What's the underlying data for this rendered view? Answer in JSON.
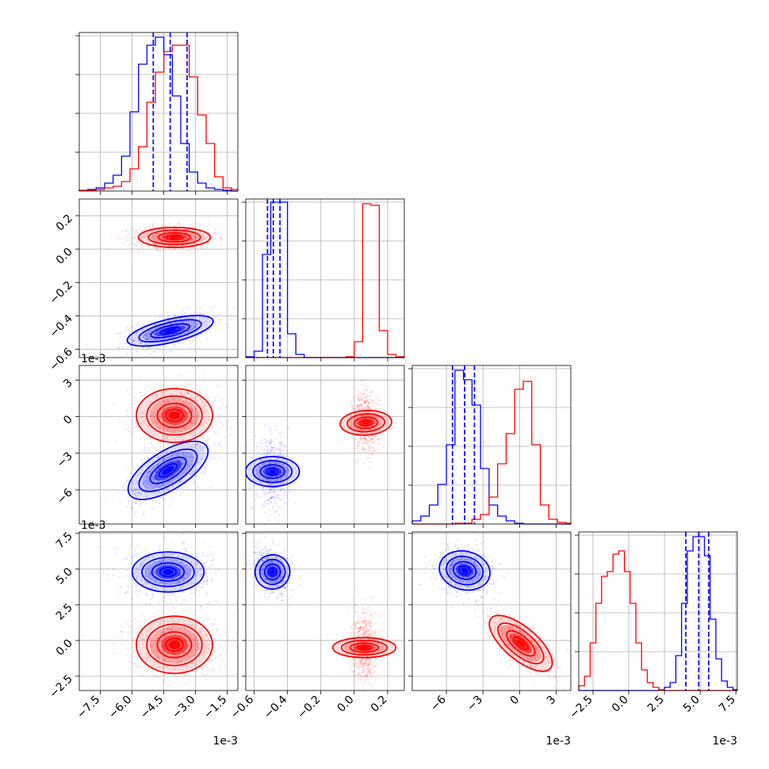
{
  "chart_data": {
    "type": "corner",
    "series": [
      {
        "name": "",
        "color": "#0000ff"
      },
      {
        "name": "",
        "color": "#ff0000"
      }
    ],
    "offset_label": "1e-3",
    "grid": true,
    "params": [
      {
        "range": [
          -8.5,
          -1.0
        ],
        "ticks": [
          -7.5,
          -6.0,
          -4.5,
          -3.0,
          -1.5
        ],
        "tick_labels": [
          "−7.5",
          "−6.0",
          "−4.5",
          "−3.0",
          "−1.5"
        ],
        "offset_label": "1e-3"
      },
      {
        "range": [
          -0.65,
          0.3
        ],
        "ticks": [
          -0.6,
          -0.4,
          -0.2,
          0.0,
          0.2
        ],
        "tick_labels": [
          "−0.6",
          "−0.4",
          "−0.2",
          "0.0",
          "0.2"
        ],
        "offset_label": ""
      },
      {
        "range": [
          -8.8,
          4.2
        ],
        "ticks": [
          -6,
          -3,
          0,
          3
        ],
        "tick_labels": [
          "−6",
          "−3",
          "0",
          "3"
        ],
        "offset_label": "1e-3"
      },
      {
        "range": [
          -3.5,
          7.6
        ],
        "ticks": [
          -2.5,
          0.0,
          2.5,
          5.0,
          7.5
        ],
        "tick_labels": [
          "−2.5",
          "0.0",
          "2.5",
          "5.0",
          "7.5"
        ],
        "offset_label": "1e-3"
      }
    ],
    "quantiles_blue": [
      [
        -5.0,
        -4.2,
        -3.4
      ],
      [
        -0.52,
        -0.485,
        -0.445
      ],
      [
        -5.5,
        -4.5,
        -3.7
      ],
      [
        4.0,
        4.9,
        5.6
      ]
    ],
    "histograms": [
      {
        "bins": [
          -8.5,
          -8.1,
          -7.7,
          -7.3,
          -6.9,
          -6.5,
          -6.1,
          -5.7,
          -5.3,
          -4.9,
          -4.5,
          -4.1,
          -3.7,
          -3.3,
          -2.9,
          -2.5,
          -2.1,
          -1.7,
          -1.3,
          -1.0
        ],
        "blue": [
          0.005,
          0.01,
          0.02,
          0.05,
          0.1,
          0.22,
          0.5,
          0.8,
          0.92,
          0.97,
          0.86,
          0.6,
          0.3,
          0.12,
          0.05,
          0.02,
          0.01,
          0.005,
          0
        ],
        "red": [
          0.005,
          0.005,
          0.01,
          0.02,
          0.03,
          0.06,
          0.14,
          0.28,
          0.56,
          0.75,
          0.88,
          0.92,
          0.92,
          0.72,
          0.48,
          0.3,
          0.09,
          0.02,
          0.01
        ]
      },
      {
        "bins": [
          -0.65,
          -0.6,
          -0.55,
          -0.5,
          -0.45,
          -0.4,
          -0.35,
          -0.3,
          -0.25,
          -0.2,
          -0.15,
          -0.1,
          -0.05,
          0.0,
          0.05,
          0.1,
          0.15,
          0.2,
          0.25,
          0.3
        ],
        "blue": [
          0.005,
          0.04,
          0.65,
          0.98,
          0.98,
          0.15,
          0.02,
          0,
          0,
          0,
          0,
          0,
          0,
          0,
          0,
          0,
          0,
          0,
          0
        ],
        "red": [
          0,
          0,
          0,
          0,
          0,
          0,
          0,
          0,
          0,
          0,
          0,
          0,
          0.005,
          0.1,
          0.97,
          0.96,
          0.17,
          0.02,
          0.005
        ]
      },
      {
        "bins": [
          -8.8,
          -8.1,
          -7.4,
          -6.7,
          -6.0,
          -5.3,
          -4.6,
          -3.9,
          -3.2,
          -2.5,
          -1.8,
          -1.1,
          -0.4,
          0.3,
          1.0,
          1.7,
          2.4,
          3.1,
          3.8,
          4.2
        ],
        "blue": [
          0.02,
          0.05,
          0.12,
          0.25,
          0.5,
          0.97,
          0.91,
          0.75,
          0.35,
          0.12,
          0.05,
          0.02,
          0.005,
          0,
          0,
          0,
          0,
          0,
          0
        ],
        "red": [
          0,
          0,
          0,
          0,
          0,
          0.005,
          0.005,
          0.03,
          0.06,
          0.17,
          0.38,
          0.57,
          0.85,
          0.9,
          0.5,
          0.12,
          0.03,
          0.01,
          0.005
        ]
      },
      {
        "bins": [
          -3.5,
          -3.1,
          -2.7,
          -2.3,
          -1.9,
          -1.5,
          -1.1,
          -0.7,
          -0.3,
          0.1,
          0.5,
          0.9,
          1.3,
          1.7,
          2.1,
          2.5,
          2.9,
          3.3,
          3.7,
          4.1,
          4.5,
          4.9,
          5.3,
          5.7,
          6.1,
          6.5,
          6.9,
          7.3,
          7.6
        ],
        "blue": [
          0,
          0,
          0,
          0,
          0,
          0,
          0,
          0,
          0,
          0,
          0,
          0,
          0,
          0,
          0.005,
          0.02,
          0.05,
          0.22,
          0.55,
          0.88,
          0.97,
          0.97,
          0.85,
          0.45,
          0.2,
          0.06,
          0.02,
          0.005
        ],
        "red": [
          0.03,
          0.09,
          0.3,
          0.55,
          0.72,
          0.75,
          0.86,
          0.88,
          0.75,
          0.55,
          0.3,
          0.13,
          0.05,
          0.02,
          0.005,
          0,
          0,
          0,
          0,
          0,
          0,
          0,
          0,
          0,
          0,
          0,
          0,
          0
        ]
      }
    ],
    "pairs": [
      {
        "row": 1,
        "col": 0,
        "blue": {
          "mean": [
            -4.2,
            -0.49
          ],
          "sd": [
            0.85,
            0.045
          ],
          "corr": 0.5
        },
        "red": {
          "mean": [
            -4.0,
            0.07
          ],
          "sd": [
            0.85,
            0.03
          ],
          "corr": 0.0
        }
      },
      {
        "row": 2,
        "col": 0,
        "blue": {
          "mean": [
            -4.3,
            -4.4
          ],
          "sd": [
            0.85,
            1.1
          ],
          "corr": 0.6
        },
        "red": {
          "mean": [
            -4.0,
            0.1
          ],
          "sd": [
            0.9,
            1.1
          ],
          "corr": 0.0
        }
      },
      {
        "row": 2,
        "col": 1,
        "blue": {
          "mean": [
            -0.49,
            -4.5
          ],
          "sd": [
            0.045,
            1.1
          ],
          "corr": 0.0
        },
        "red": {
          "mean": [
            0.07,
            -0.5
          ],
          "sd": [
            0.035,
            1.1
          ],
          "corr": -0.1
        }
      },
      {
        "row": 3,
        "col": 0,
        "blue": {
          "mean": [
            -4.3,
            4.8
          ],
          "sd": [
            0.85,
            0.7
          ],
          "corr": 0.0
        },
        "red": {
          "mean": [
            -4.0,
            -0.3
          ],
          "sd": [
            0.9,
            1.0
          ],
          "corr": 0.0
        }
      },
      {
        "row": 3,
        "col": 1,
        "blue": {
          "mean": [
            -0.49,
            4.8
          ],
          "sd": [
            0.045,
            0.7
          ],
          "corr": -0.3
        },
        "red": {
          "mean": [
            0.06,
            -0.5
          ],
          "sd": [
            0.03,
            1.1
          ],
          "corr": 0.0
        }
      },
      {
        "row": 3,
        "col": 2,
        "blue": {
          "mean": [
            -4.5,
            4.9
          ],
          "sd": [
            1.0,
            0.7
          ],
          "corr": -0.1
        },
        "red": {
          "mean": [
            0.1,
            -0.2
          ],
          "sd": [
            1.2,
            0.9
          ],
          "corr": -0.75
        }
      }
    ]
  }
}
